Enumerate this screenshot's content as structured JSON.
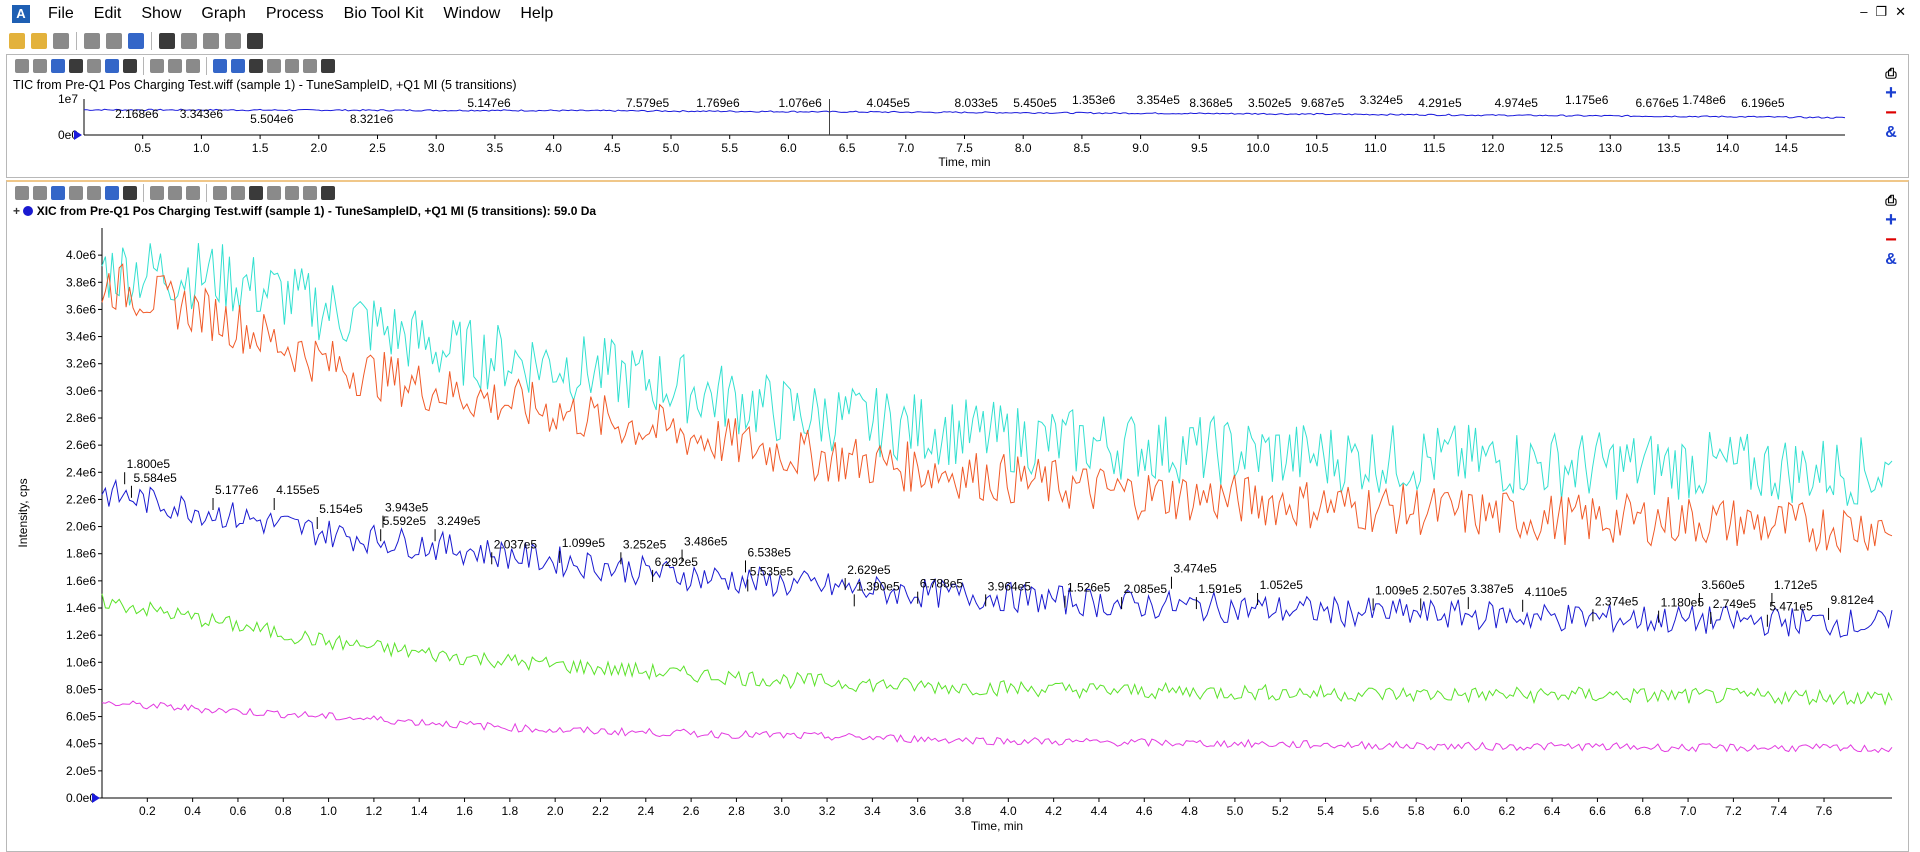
{
  "menubar": {
    "items": [
      "File",
      "Edit",
      "Show",
      "Graph",
      "Process",
      "Bio Tool Kit",
      "Window",
      "Help"
    ]
  },
  "tic": {
    "title": "TIC from Pre-Q1 Pos Charging Test.wiff (sample 1) - TuneSampleID, +Q1 MI (5 transitions)",
    "y_ticks": [
      "1e7",
      "0e0"
    ],
    "x_ticks": [
      "0.5",
      "1.0",
      "1.5",
      "2.0",
      "2.5",
      "3.0",
      "3.5",
      "4.0",
      "4.5",
      "5.0",
      "5.5",
      "6.0",
      "6.5",
      "7.0",
      "7.5",
      "8.0",
      "8.5",
      "9.0",
      "9.5",
      "10.0",
      "10.5",
      "11.0",
      "11.5",
      "12.0",
      "12.5",
      "13.0",
      "13.5",
      "14.0",
      "14.5"
    ],
    "x_label": "Time, min",
    "peaks": [
      {
        "t": 0.45,
        "label": "2.168e6",
        "row": 2
      },
      {
        "t": 1.0,
        "label": "3.343e6",
        "row": 2
      },
      {
        "t": 1.6,
        "label": "5.504e6",
        "row": 3
      },
      {
        "t": 2.45,
        "label": "8.321e6",
        "row": 3
      },
      {
        "t": 3.45,
        "label": "5.147e6",
        "row": 1
      },
      {
        "t": 4.8,
        "label": "7.579e5",
        "row": 1
      },
      {
        "t": 5.4,
        "label": "1.769e6",
        "row": 1
      },
      {
        "t": 6.1,
        "label": "1.076e6",
        "row": 1
      },
      {
        "t": 6.85,
        "label": "4.045e5",
        "row": 1
      },
      {
        "t": 7.6,
        "label": "8.033e5",
        "row": 1
      },
      {
        "t": 8.1,
        "label": "5.450e5",
        "row": 1
      },
      {
        "t": 8.6,
        "label": "1.353e6",
        "row": 0
      },
      {
        "t": 9.15,
        "label": "3.354e5",
        "row": 0
      },
      {
        "t": 9.6,
        "label": "8.368e5",
        "row": 1
      },
      {
        "t": 10.1,
        "label": "3.502e5",
        "row": 1
      },
      {
        "t": 10.55,
        "label": "9.687e5",
        "row": 1
      },
      {
        "t": 11.05,
        "label": "3.324e5",
        "row": 0
      },
      {
        "t": 11.55,
        "label": "4.291e5",
        "row": 1
      },
      {
        "t": 12.2,
        "label": "4.974e5",
        "row": 1
      },
      {
        "t": 12.8,
        "label": "1.175e6",
        "row": 0
      },
      {
        "t": 13.4,
        "label": "6.676e5",
        "row": 1
      },
      {
        "t": 13.8,
        "label": "1.748e6",
        "row": 0
      },
      {
        "t": 14.3,
        "label": "6.196e5",
        "row": 1
      }
    ]
  },
  "xic": {
    "title": "XIC from Pre-Q1 Pos Charging Test.wiff (sample 1) - TuneSampleID, +Q1 MI (5 transitions): 59.0 Da",
    "y_label": "Intensity, cps",
    "x_label": "Time, min",
    "y_ticks": [
      "0.0e0",
      "2.0e5",
      "4.0e5",
      "6.0e5",
      "8.0e5",
      "1.0e6",
      "1.2e6",
      "1.4e6",
      "1.6e6",
      "1.8e6",
      "2.0e6",
      "2.2e6",
      "2.4e6",
      "2.6e6",
      "2.8e6",
      "3.0e6",
      "3.2e6",
      "3.4e6",
      "3.6e6",
      "3.8e6",
      "4.0e6"
    ],
    "x_ticks": [
      "0.2",
      "0.4",
      "0.6",
      "0.8",
      "1.0",
      "1.2",
      "1.4",
      "1.6",
      "1.8",
      "2.0",
      "2.2",
      "2.4",
      "2.6",
      "2.8",
      "3.0",
      "3.2",
      "3.4",
      "3.6",
      "3.8",
      "4.0",
      "4.2",
      "4.4",
      "4.6",
      "4.8",
      "5.0",
      "5.2",
      "5.4",
      "5.6",
      "5.8",
      "6.0",
      "6.2",
      "6.4",
      "6.6",
      "6.8",
      "7.0",
      "7.2",
      "7.4",
      "7.6"
    ],
    "peaks": [
      {
        "t": 0.1,
        "label": "1.800e5",
        "y": 2430000
      },
      {
        "t": 0.13,
        "label": "5.584e5",
        "y": 2330000
      },
      {
        "t": 0.49,
        "label": "5.177e6",
        "y": 2240000
      },
      {
        "t": 0.76,
        "label": "4.155e5",
        "y": 2240000
      },
      {
        "t": 0.95,
        "label": "5.154e5",
        "y": 2100000
      },
      {
        "t": 1.23,
        "label": "5.592e5",
        "y": 2010000
      },
      {
        "t": 1.24,
        "label": "3.943e5",
        "y": 2110000
      },
      {
        "t": 1.47,
        "label": "3.249e5",
        "y": 2010000
      },
      {
        "t": 1.72,
        "label": "2.037e5",
        "y": 1840000
      },
      {
        "t": 2.02,
        "label": "1.099e5",
        "y": 1850000
      },
      {
        "t": 2.29,
        "label": "3.252e5",
        "y": 1840000
      },
      {
        "t": 2.43,
        "label": "6.292e5",
        "y": 1710000
      },
      {
        "t": 2.56,
        "label": "3.486e5",
        "y": 1860000
      },
      {
        "t": 2.84,
        "label": "6.538e5",
        "y": 1780000
      },
      {
        "t": 2.85,
        "label": "5.535e5",
        "y": 1640000
      },
      {
        "t": 3.28,
        "label": "2.629e5",
        "y": 1650000
      },
      {
        "t": 3.32,
        "label": "1.390e5",
        "y": 1530000
      },
      {
        "t": 3.6,
        "label": "6.788e5",
        "y": 1550000
      },
      {
        "t": 3.9,
        "label": "3.964e5",
        "y": 1530000
      },
      {
        "t": 4.25,
        "label": "1.526e5",
        "y": 1520000
      },
      {
        "t": 4.5,
        "label": "2.085e5",
        "y": 1510000
      },
      {
        "t": 4.72,
        "label": "3.474e5",
        "y": 1660000
      },
      {
        "t": 4.83,
        "label": "1.591e5",
        "y": 1510000
      },
      {
        "t": 5.1,
        "label": "1.052e5",
        "y": 1540000
      },
      {
        "t": 5.61,
        "label": "1.009e5",
        "y": 1500000
      },
      {
        "t": 5.82,
        "label": "2.507e5",
        "y": 1500000
      },
      {
        "t": 6.03,
        "label": "3.387e5",
        "y": 1510000
      },
      {
        "t": 6.27,
        "label": "4.110e5",
        "y": 1490000
      },
      {
        "t": 6.58,
        "label": "2.374e5",
        "y": 1420000
      },
      {
        "t": 6.87,
        "label": "1.180e5",
        "y": 1410000
      },
      {
        "t": 7.05,
        "label": "3.560e5",
        "y": 1540000
      },
      {
        "t": 7.1,
        "label": "2.749e5",
        "y": 1400000
      },
      {
        "t": 7.35,
        "label": "5.471e5",
        "y": 1380000
      },
      {
        "t": 7.37,
        "label": "1.712e5",
        "y": 1540000
      },
      {
        "t": 7.62,
        "label": "9.812e4",
        "y": 1430000
      }
    ]
  },
  "chart_data": [
    {
      "type": "line",
      "title": "TIC from Pre-Q1 Pos Charging Test.wiff (sample 1) - TuneSampleID, +Q1 MI (5 transitions)",
      "xlabel": "Time, min",
      "ylabel": "",
      "xlim": [
        0,
        15.0
      ],
      "ylim": [
        0,
        10000000
      ],
      "series": [
        {
          "name": "TIC",
          "color": "#1a1adc",
          "x": [
            0,
            2,
            4,
            6,
            8,
            10,
            12,
            14,
            15.0
          ],
          "values": [
            7000000,
            6900000,
            6800000,
            6500000,
            6200000,
            5900000,
            5500000,
            5100000,
            4800000
          ]
        }
      ]
    },
    {
      "type": "line",
      "title": "XIC from Pre-Q1 Pos Charging Test.wiff (sample 1) - TuneSampleID, +Q1 MI (5 transitions): 59.0 Da",
      "xlabel": "Time, min",
      "ylabel": "Intensity, cps",
      "xlim": [
        0,
        7.9
      ],
      "ylim": [
        0,
        4200000
      ],
      "series": [
        {
          "name": "cyan",
          "color": "#33e0d0",
          "x": [
            0,
            0.5,
            1,
            1.5,
            2,
            2.5,
            3,
            3.5,
            4,
            4.5,
            5,
            5.5,
            6,
            6.5,
            7,
            7.5,
            7.9
          ],
          "values": [
            3900000,
            3850000,
            3600000,
            3300000,
            3200000,
            3050000,
            2850000,
            2750000,
            2650000,
            2600000,
            2550000,
            2500000,
            2500000,
            2450000,
            2450000,
            2420000,
            2400000
          ]
        },
        {
          "name": "orange",
          "color": "#f05a28",
          "x": [
            0,
            0.5,
            1,
            1.5,
            2,
            2.5,
            3,
            3.5,
            4,
            4.5,
            5,
            5.5,
            6,
            6.5,
            7,
            7.5,
            7.9
          ],
          "values": [
            3800000,
            3550000,
            3200000,
            3000000,
            2850000,
            2700000,
            2550000,
            2450000,
            2350000,
            2250000,
            2200000,
            2150000,
            2100000,
            2050000,
            2050000,
            2000000,
            2000000
          ]
        },
        {
          "name": "blue",
          "color": "#1a1ad0",
          "x": [
            0,
            0.5,
            1,
            1.5,
            2,
            2.5,
            3,
            3.5,
            4,
            4.5,
            5,
            5.5,
            6,
            6.5,
            7,
            7.5,
            7.9
          ],
          "values": [
            2250000,
            2100000,
            1950000,
            1850000,
            1750000,
            1650000,
            1580000,
            1520000,
            1480000,
            1430000,
            1400000,
            1370000,
            1350000,
            1330000,
            1310000,
            1300000,
            1280000
          ]
        },
        {
          "name": "green",
          "color": "#5be22a",
          "x": [
            0,
            0.5,
            1,
            1.5,
            2,
            2.5,
            3,
            3.5,
            4,
            4.5,
            5,
            5.5,
            6,
            6.5,
            7,
            7.5,
            7.9
          ],
          "values": [
            1450000,
            1300000,
            1150000,
            1050000,
            980000,
            920000,
            870000,
            830000,
            810000,
            790000,
            780000,
            770000,
            760000,
            760000,
            750000,
            750000,
            740000
          ]
        },
        {
          "name": "magenta",
          "color": "#e23ae0",
          "x": [
            0,
            0.5,
            1,
            1.5,
            2,
            2.5,
            3,
            3.5,
            4,
            4.5,
            5,
            5.5,
            6,
            6.5,
            7,
            7.5,
            7.9
          ],
          "values": [
            700000,
            650000,
            600000,
            550000,
            500000,
            480000,
            460000,
            440000,
            420000,
            410000,
            400000,
            390000,
            380000,
            380000,
            370000,
            370000,
            360000
          ]
        }
      ]
    }
  ]
}
